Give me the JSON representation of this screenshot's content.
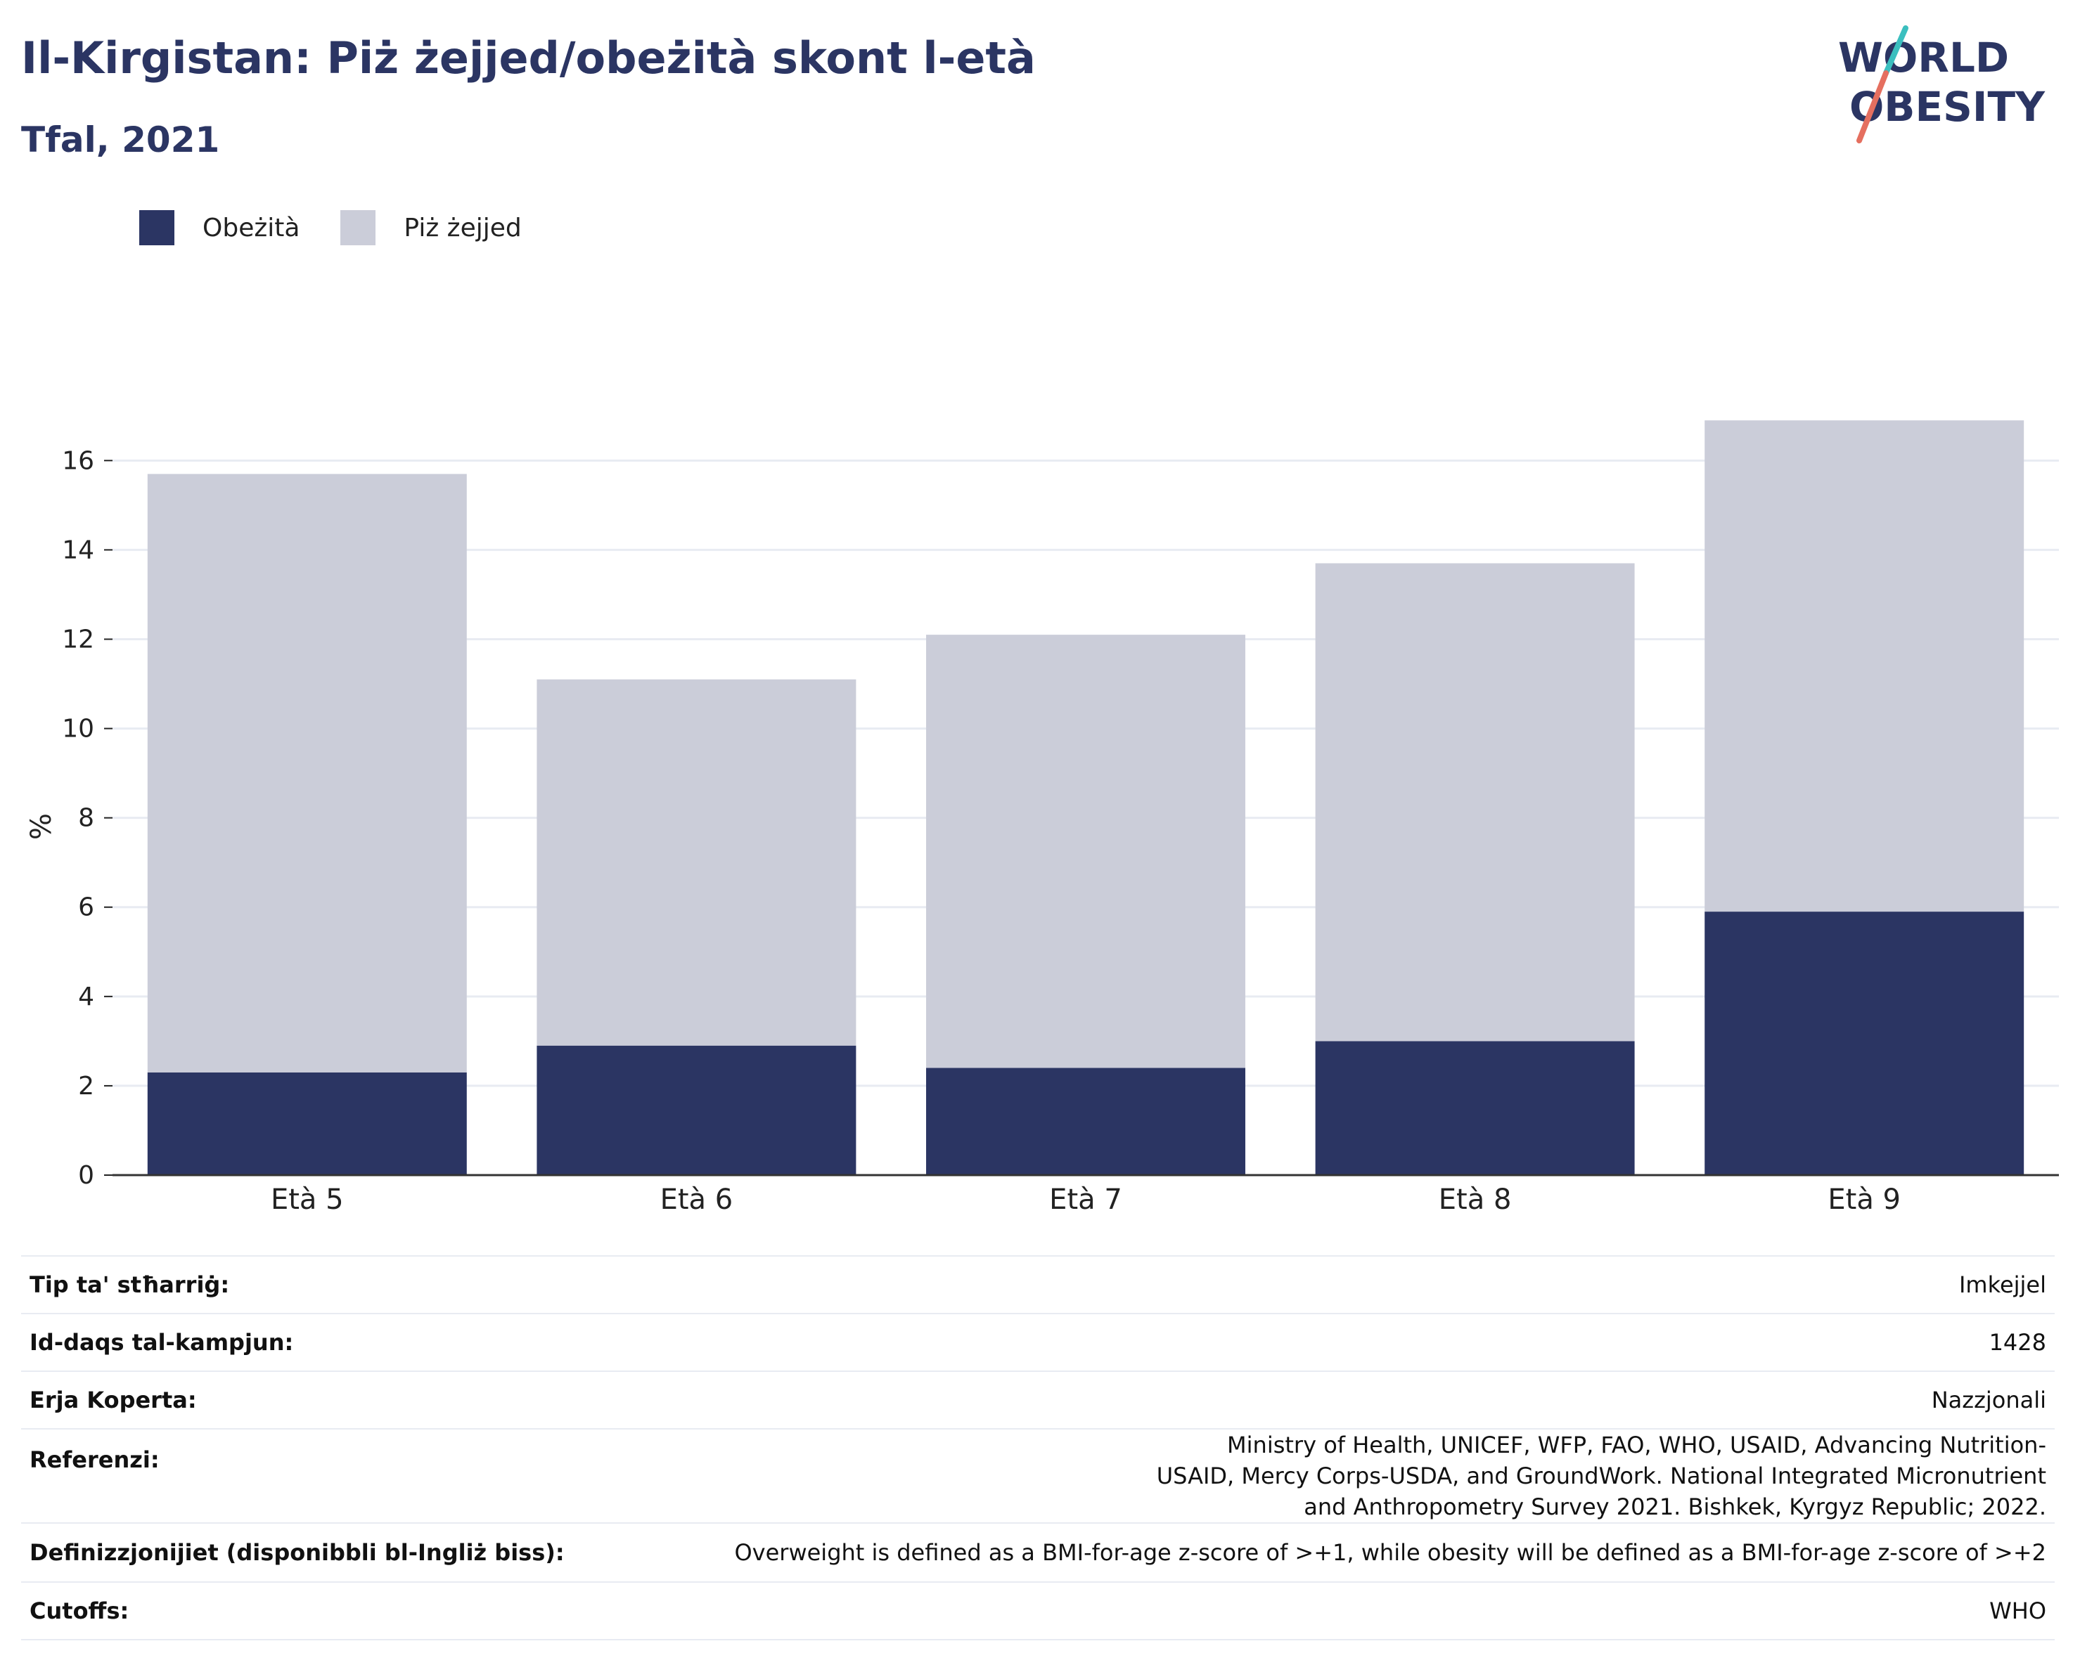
{
  "title": "Il-Kirgistan: Piż żejjed/obeżità skont l-età",
  "subtitle": "Tfal, 2021",
  "logo": {
    "line1": "WORLD",
    "line2": "OBESITY"
  },
  "legend": [
    {
      "label": "Obeżità",
      "color": "#2b3563"
    },
    {
      "label": "Piż żejjed",
      "color": "#cbcdd9"
    }
  ],
  "chart_data": {
    "type": "bar",
    "stacked": true,
    "categories": [
      "Età 5",
      "Età 6",
      "Età 7",
      "Età 8",
      "Età 9"
    ],
    "series": [
      {
        "name": "Obeżità",
        "values": [
          2.3,
          2.9,
          2.4,
          3.0,
          5.9
        ],
        "color": "#2b3563"
      },
      {
        "name": "Piż żejjed",
        "values": [
          13.4,
          8.2,
          9.7,
          10.7,
          11.0
        ],
        "color": "#cbcdd9"
      }
    ],
    "totals": [
      15.7,
      11.1,
      12.1,
      13.7,
      16.9
    ],
    "ylabel": "%",
    "ylim": [
      0,
      17.5
    ],
    "yticks": [
      0,
      2,
      4,
      6,
      8,
      10,
      12,
      14,
      16
    ],
    "grid": true,
    "legend_position": "top-left"
  },
  "meta": [
    {
      "key": "Tip ta' stħarriġ:",
      "value": "Imkejjel"
    },
    {
      "key": "Id-daqs tal-kampjun:",
      "value": "1428"
    },
    {
      "key": "Erja Koperta:",
      "value": "Nazzjonali"
    },
    {
      "key": "Referenzi:",
      "value": "Ministry of Health, UNICEF, WFP, FAO, WHO, USAID, Advancing Nutrition-USAID, Mercy Corps-USDA, and GroundWork. National Integrated Micronutrient and Anthropometry Survey 2021. Bishkek, Kyrgyz Republic; 2022."
    },
    {
      "key": "Definizzjonijiet (disponibbli bl-Ingliż biss):",
      "value": "Overweight is defined as a BMI-for-age z-score of >+1, while obesity will be defined as a BMI-for-age z-score of >+2"
    },
    {
      "key": "Cutoffs:",
      "value": "WHO"
    }
  ]
}
